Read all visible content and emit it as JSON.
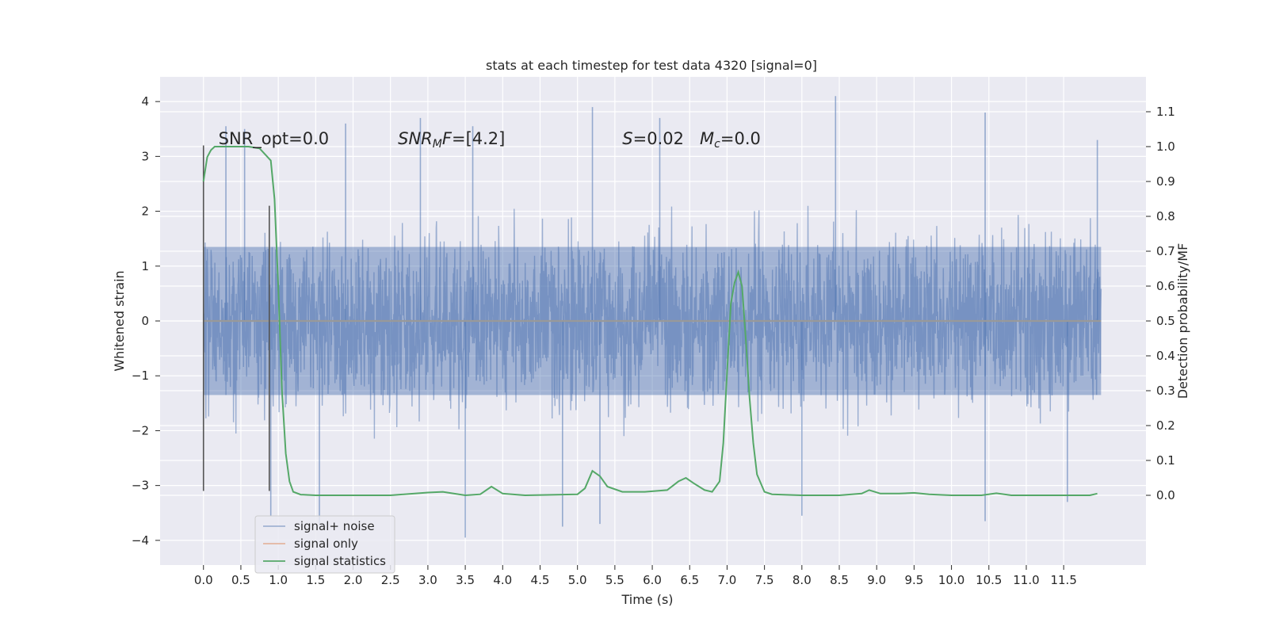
{
  "chart_data": {
    "type": "line",
    "title": "stats at each timestep for test data 4320 [signal=0]",
    "xlabel": "Time (s)",
    "ylabel_left": "Whitened strain",
    "ylabel_right": "Detection probability/MF",
    "xlim": [
      -0.58,
      12.6
    ],
    "ylim_left": [
      -4.45,
      4.45
    ],
    "ylim_right": [
      -0.2,
      1.2
    ],
    "x_ticks": [
      "0.0",
      "0.5",
      "1.0",
      "1.5",
      "2.0",
      "2.5",
      "3.0",
      "3.5",
      "4.0",
      "4.5",
      "5.0",
      "5.5",
      "6.0",
      "6.5",
      "7.0",
      "7.5",
      "8.0",
      "8.5",
      "9.0",
      "9.5",
      "10.0",
      "10.5",
      "11.0",
      "11.5"
    ],
    "x_tick_values": [
      0.0,
      0.5,
      1.0,
      1.5,
      2.0,
      2.5,
      3.0,
      3.5,
      4.0,
      4.5,
      5.0,
      5.5,
      6.0,
      6.5,
      7.0,
      7.5,
      8.0,
      8.5,
      9.0,
      9.5,
      10.0,
      10.5,
      11.0,
      11.5
    ],
    "y_ticks_left": [
      "4",
      "3",
      "2",
      "1",
      "0",
      "−1",
      "−2",
      "−3",
      "−4"
    ],
    "y_tick_values_left": [
      4,
      3,
      2,
      1,
      0,
      -1,
      -2,
      -3,
      -4
    ],
    "y_ticks_right": [
      "1.1",
      "1.0",
      "0.9",
      "0.8",
      "0.7",
      "0.6",
      "0.5",
      "0.4",
      "0.3",
      "0.2",
      "0.1",
      "0.0"
    ],
    "y_tick_values_right": [
      1.1,
      1.0,
      0.9,
      0.8,
      0.7,
      0.6,
      0.5,
      0.4,
      0.3,
      0.2,
      0.1,
      0.0
    ],
    "grid": true,
    "legend_position": "lower-left",
    "series": [
      {
        "name": "signal+ noise",
        "axis": "left",
        "color": "#4c72b0",
        "x_range": [
          0.0,
          12.0
        ],
        "envelope_typical": [
          -2.0,
          2.0
        ],
        "spike_max": 4.1,
        "spike_min": -3.95,
        "peaks": [
          [
            0.3,
            3.55
          ],
          [
            0.55,
            3.5
          ],
          [
            1.9,
            3.6
          ],
          [
            2.9,
            3.7
          ],
          [
            3.6,
            3.55
          ],
          [
            5.2,
            3.9
          ],
          [
            6.1,
            3.7
          ],
          [
            8.45,
            4.1
          ],
          [
            10.45,
            3.8
          ],
          [
            11.95,
            3.3
          ]
        ],
        "troughs": [
          [
            0.9,
            -3.55
          ],
          [
            1.55,
            -3.7
          ],
          [
            3.5,
            -3.95
          ],
          [
            4.8,
            -3.75
          ],
          [
            5.3,
            -3.7
          ],
          [
            8.0,
            -3.55
          ],
          [
            10.45,
            -3.65
          ],
          [
            11.55,
            -3.3
          ]
        ]
      },
      {
        "name": "signal only",
        "axis": "left",
        "color": "#dd8452",
        "x": [
          0.0,
          12.0
        ],
        "y": [
          0.0,
          0.0
        ]
      },
      {
        "name": "signal statistics",
        "axis": "right",
        "color": "#55a868",
        "x": [
          0.0,
          0.05,
          0.1,
          0.15,
          0.2,
          0.3,
          0.4,
          0.6,
          0.75,
          0.9,
          0.95,
          1.0,
          1.05,
          1.1,
          1.15,
          1.2,
          1.3,
          1.5,
          2.0,
          2.5,
          3.0,
          3.2,
          3.5,
          3.7,
          3.85,
          4.0,
          4.3,
          5.0,
          5.1,
          5.2,
          5.3,
          5.4,
          5.6,
          5.9,
          6.2,
          6.35,
          6.45,
          6.55,
          6.7,
          6.8,
          6.9,
          6.95,
          7.0,
          7.05,
          7.1,
          7.15,
          7.2,
          7.25,
          7.3,
          7.35,
          7.4,
          7.5,
          7.6,
          8.0,
          8.5,
          8.8,
          8.9,
          9.05,
          9.3,
          9.5,
          9.7,
          10.0,
          10.4,
          10.6,
          10.8,
          11.2,
          11.6,
          11.85,
          11.95
        ],
        "y": [
          0.9,
          0.97,
          0.99,
          1.0,
          1.0,
          1.0,
          1.0,
          1.0,
          0.995,
          0.96,
          0.85,
          0.6,
          0.3,
          0.12,
          0.04,
          0.01,
          0.002,
          0.0,
          0.0,
          0.0,
          0.008,
          0.01,
          0.0,
          0.003,
          0.025,
          0.005,
          0.0,
          0.003,
          0.02,
          0.07,
          0.055,
          0.025,
          0.01,
          0.01,
          0.015,
          0.04,
          0.05,
          0.035,
          0.015,
          0.01,
          0.04,
          0.15,
          0.35,
          0.55,
          0.61,
          0.64,
          0.6,
          0.45,
          0.28,
          0.15,
          0.06,
          0.01,
          0.003,
          0.0,
          0.0,
          0.005,
          0.015,
          0.005,
          0.005,
          0.007,
          0.003,
          0.0,
          0.0,
          0.006,
          0.0,
          0.0,
          0.0,
          0.0,
          0.005
        ]
      }
    ],
    "vlines": [
      {
        "x": 0.0,
        "y": [
          -3.1,
          3.2
        ],
        "color": "#555555"
      },
      {
        "x": 0.88,
        "y": [
          -3.1,
          2.1
        ],
        "color": "#555555"
      }
    ],
    "annotations": [
      {
        "id": "snr-opt",
        "x": 0.2,
        "y": 3.22,
        "text": "SNR_opt=0.0"
      },
      {
        "id": "snr-mf",
        "x": 2.6,
        "y": 3.22,
        "text": "SNR_MF=[4.2]"
      },
      {
        "id": "s-mc",
        "x": 5.6,
        "y": 3.22,
        "text": "S=0.02   M_c=0.0"
      }
    ]
  }
}
